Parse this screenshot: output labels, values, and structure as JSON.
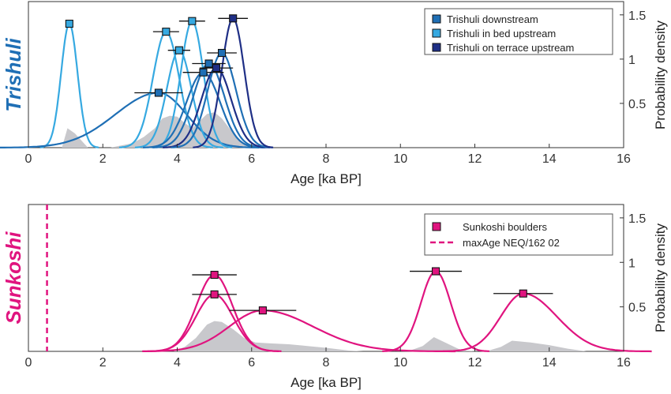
{
  "chart_data": [
    {
      "type": "line",
      "panel_label": "Trishuli",
      "panel_label_color": "#1f6fb5",
      "xlabel": "Age [ka BP]",
      "ylabel": "Probability density",
      "xlim": [
        0,
        16
      ],
      "ylim": [
        0,
        1.65
      ],
      "x_ticks": [
        "0",
        "2",
        "4",
        "6",
        "8",
        "10",
        "12",
        "14",
        "16"
      ],
      "y_ticks": [
        "0.5",
        "1",
        "1.5"
      ],
      "grid": false,
      "legend_position": "top-right",
      "legend": [
        {
          "label": "Trishuli downstream",
          "color": "#1f6fb5",
          "marker": "square"
        },
        {
          "label": "Trishuli in bed upstream",
          "color": "#36a9e1",
          "marker": "square"
        },
        {
          "label": "Trishuli on terrace upstream",
          "color": "#1f2f86",
          "marker": "square"
        }
      ],
      "background_density": {
        "color": "#c8c8cc",
        "x": [
          0.9,
          1.05,
          1.25,
          1.6,
          2.2,
          2.8,
          3.1,
          3.4,
          3.6,
          3.8,
          4.0,
          4.2,
          4.4,
          4.6,
          4.8,
          5.0,
          5.2,
          5.4,
          5.7,
          6.0
        ],
        "y": [
          0.0,
          0.22,
          0.16,
          0.0,
          0.0,
          0.05,
          0.12,
          0.22,
          0.33,
          0.36,
          0.35,
          0.28,
          0.22,
          0.3,
          0.38,
          0.4,
          0.33,
          0.22,
          0.08,
          0.0
        ]
      },
      "series": [
        {
          "group": "in bed upstream",
          "color": "#36a9e1",
          "center": 1.1,
          "sigma": 0.22,
          "peak": 1.4,
          "xerr": 0.0
        },
        {
          "group": "downstream",
          "color": "#1f6fb5",
          "center": 3.5,
          "sigma": 0.75,
          "peak": 0.62,
          "xerr": 0.65,
          "left_skew": true
        },
        {
          "group": "in bed upstream",
          "color": "#36a9e1",
          "center": 3.7,
          "sigma": 0.35,
          "peak": 1.31,
          "xerr": 0.35
        },
        {
          "group": "in bed upstream",
          "color": "#36a9e1",
          "center": 4.05,
          "sigma": 0.33,
          "peak": 1.1,
          "xerr": 0.3
        },
        {
          "group": "in bed upstream",
          "color": "#36a9e1",
          "center": 4.4,
          "sigma": 0.3,
          "peak": 1.43,
          "xerr": 0.35
        },
        {
          "group": "downstream",
          "color": "#1f6fb5",
          "center": 4.7,
          "sigma": 0.45,
          "peak": 0.85,
          "xerr": 0.55
        },
        {
          "group": "downstream",
          "color": "#1f6fb5",
          "center": 4.85,
          "sigma": 0.42,
          "peak": 0.95,
          "xerr": 0.45
        },
        {
          "group": "on terrace upstream",
          "color": "#1f2f86",
          "center": 5.05,
          "sigma": 0.4,
          "peak": 0.9,
          "xerr": 0.45
        },
        {
          "group": "downstream",
          "color": "#1f6fb5",
          "center": 5.2,
          "sigma": 0.38,
          "peak": 1.07,
          "xerr": 0.4
        },
        {
          "group": "on terrace upstream",
          "color": "#1f2f86",
          "center": 5.5,
          "sigma": 0.3,
          "peak": 1.46,
          "xerr": 0.4
        }
      ]
    },
    {
      "type": "line",
      "panel_label": "Sunkoshi",
      "panel_label_color": "#e0147f",
      "xlabel": "Age [ka BP]",
      "ylabel": "Probability density",
      "xlim": [
        0,
        16
      ],
      "ylim": [
        0,
        1.65
      ],
      "x_ticks": [
        "0",
        "2",
        "4",
        "6",
        "8",
        "10",
        "12",
        "14",
        "16"
      ],
      "y_ticks": [
        "0.5",
        "1",
        "1.5"
      ],
      "grid": false,
      "legend_position": "top-right",
      "legend": [
        {
          "label": "Sunkoshi boulders",
          "color": "#e0147f",
          "marker": "square"
        },
        {
          "label": "maxAge NEQ/162 02",
          "color": "#e0147f",
          "marker": "dashed-line"
        }
      ],
      "max_age_line_x": 0.5,
      "background_density": {
        "color": "#c8c8cc",
        "segments": [
          {
            "x": [
              3.9,
              4.2,
              4.5,
              4.8,
              5.0,
              5.2,
              5.5,
              5.8,
              6.1,
              6.5,
              7.0,
              7.5,
              8.0,
              8.6,
              9.0
            ],
            "y": [
              0.0,
              0.05,
              0.15,
              0.3,
              0.34,
              0.33,
              0.25,
              0.15,
              0.1,
              0.09,
              0.08,
              0.06,
              0.04,
              0.01,
              0.0
            ]
          },
          {
            "x": [
              10.2,
              10.6,
              10.9,
              11.2,
              11.6,
              12.0
            ],
            "y": [
              0.0,
              0.06,
              0.16,
              0.1,
              0.02,
              0.0
            ]
          },
          {
            "x": [
              12.3,
              12.7,
              13.0,
              13.5,
              14.0,
              14.5,
              15.0
            ],
            "y": [
              0.0,
              0.05,
              0.12,
              0.1,
              0.07,
              0.03,
              0.0
            ]
          }
        ]
      },
      "series": [
        {
          "color": "#e0147f",
          "center": 5.0,
          "sigma": 0.48,
          "peak": 0.86,
          "xerr": 0.6
        },
        {
          "color": "#e0147f",
          "center": 5.0,
          "sigma": 0.5,
          "peak": 0.64,
          "xerr": 0.6
        },
        {
          "color": "#e0147f",
          "center": 6.3,
          "sigma": 0.9,
          "peak": 0.46,
          "xerr": 0.9,
          "right_skew": true
        },
        {
          "color": "#e0147f",
          "center": 10.95,
          "sigma": 0.4,
          "peak": 0.9,
          "xerr": 0.7
        },
        {
          "color": "#e0147f",
          "center": 13.3,
          "sigma": 0.6,
          "peak": 0.65,
          "xerr": 0.8,
          "right_skew": true
        }
      ]
    }
  ]
}
